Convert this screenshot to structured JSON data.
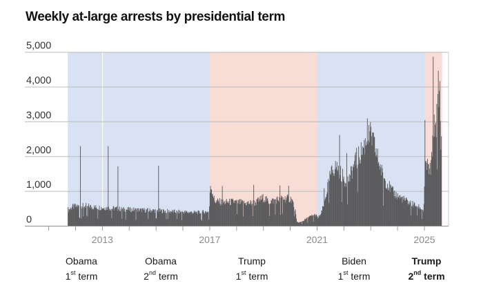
{
  "chart_data": {
    "type": "bar",
    "title": "Weekly at-large arrests by presidential term",
    "ylabel": "",
    "xlabel": "",
    "grid": "horizontal",
    "legend": "none",
    "y_axis": {
      "min": 0,
      "max": 5000,
      "ticks": [
        {
          "value": 0,
          "label": "0"
        },
        {
          "value": 1000,
          "label": "1,000"
        },
        {
          "value": 2000,
          "label": "2,000"
        },
        {
          "value": 3000,
          "label": "3,000"
        },
        {
          "value": 4000,
          "label": "4,000"
        },
        {
          "value": 5000,
          "label": "5,000"
        }
      ]
    },
    "x_axis": {
      "min_year": 2010.11,
      "max_year": 2025.9,
      "tick_years": [
        2011,
        2012,
        2013,
        2014,
        2015,
        2016,
        2017,
        2018,
        2019,
        2020,
        2021,
        2022,
        2023,
        2024,
        2025
      ],
      "year_labels": [
        {
          "year": 2013,
          "text": "2013"
        },
        {
          "year": 2017,
          "text": "2017"
        },
        {
          "year": 2021,
          "text": "2021"
        },
        {
          "year": 2025,
          "text": "2025"
        }
      ]
    },
    "bands": [
      {
        "term": "Obama 1st term",
        "party": "democrat",
        "start": 2011.71,
        "end": 2012.99,
        "color": "#d8e2f2"
      },
      {
        "term": "Obama 2nd term",
        "party": "democrat",
        "start": 2013.02,
        "end": 2017.0,
        "color": "#d8e2f2"
      },
      {
        "term": "Trump 1st term",
        "party": "republican",
        "start": 2017.0,
        "end": 2021.0,
        "color": "#f8dcd6"
      },
      {
        "term": "Biden 1st term",
        "party": "democrat",
        "start": 2021.0,
        "end": 2025.0,
        "color": "#d8e2f2"
      },
      {
        "term": "Trump 2nd term",
        "party": "republican",
        "start": 2025.0,
        "end": 2025.66,
        "color": "#f8dcd6"
      }
    ],
    "terms": [
      {
        "name": "Obama",
        "ordinal": "1",
        "suffix": "st",
        "word": "term",
        "x": 118,
        "bold": false
      },
      {
        "name": "Obama",
        "ordinal": "2",
        "suffix": "nd",
        "word": "term",
        "x": 233,
        "bold": false
      },
      {
        "name": "Trump",
        "ordinal": "1",
        "suffix": "st",
        "word": "term",
        "x": 365,
        "bold": false
      },
      {
        "name": "Biden",
        "ordinal": "1",
        "suffix": "st",
        "word": "term",
        "x": 513,
        "bold": false
      },
      {
        "name": "Trump",
        "ordinal": "2",
        "suffix": "nd",
        "word": "term",
        "x": 618,
        "bold": true
      }
    ],
    "series": {
      "name": "Weekly at-large arrests",
      "sampling": "weekly",
      "start_year": 2011.72,
      "end_year": 2025.648,
      "jitter": 0.16,
      "dip_chance": 0.055,
      "dip_factor": 0.45,
      "min_value": 35,
      "envelope_anchors": [
        [
          2011.75,
          480
        ],
        [
          2011.9,
          560
        ],
        [
          2012.1,
          570
        ],
        [
          2012.4,
          580
        ],
        [
          2012.7,
          540
        ],
        [
          2013.0,
          530
        ],
        [
          2013.4,
          510
        ],
        [
          2013.8,
          480
        ],
        [
          2014.2,
          470
        ],
        [
          2014.6,
          455
        ],
        [
          2015.0,
          450
        ],
        [
          2015.4,
          430
        ],
        [
          2015.8,
          410
        ],
        [
          2016.2,
          400
        ],
        [
          2016.6,
          390
        ],
        [
          2016.98,
          420
        ],
        [
          2017.03,
          1200
        ],
        [
          2017.1,
          1000
        ],
        [
          2017.18,
          720
        ],
        [
          2017.5,
          680
        ],
        [
          2017.9,
          700
        ],
        [
          2018.3,
          660
        ],
        [
          2018.7,
          670
        ],
        [
          2019.0,
          820
        ],
        [
          2019.2,
          700
        ],
        [
          2019.5,
          760
        ],
        [
          2019.8,
          800
        ],
        [
          2020.05,
          780
        ],
        [
          2020.18,
          500
        ],
        [
          2020.24,
          120
        ],
        [
          2020.35,
          100
        ],
        [
          2020.5,
          160
        ],
        [
          2020.7,
          260
        ],
        [
          2020.95,
          330
        ],
        [
          2021.03,
          230
        ],
        [
          2021.15,
          350
        ],
        [
          2021.3,
          750
        ],
        [
          2021.45,
          1350
        ],
        [
          2021.6,
          1650
        ],
        [
          2021.75,
          1700
        ],
        [
          2021.9,
          1500
        ],
        [
          2022.05,
          1300
        ],
        [
          2022.2,
          1350
        ],
        [
          2022.4,
          1800
        ],
        [
          2022.6,
          2050
        ],
        [
          2022.75,
          2300
        ],
        [
          2022.9,
          2550
        ],
        [
          2023.02,
          2600
        ],
        [
          2023.15,
          2250
        ],
        [
          2023.3,
          1850
        ],
        [
          2023.45,
          1450
        ],
        [
          2023.6,
          1250
        ],
        [
          2023.8,
          1000
        ],
        [
          2024.0,
          870
        ],
        [
          2024.2,
          780
        ],
        [
          2024.4,
          690
        ],
        [
          2024.6,
          620
        ],
        [
          2024.8,
          560
        ],
        [
          2024.97,
          440
        ],
        [
          2025.02,
          1400
        ],
        [
          2025.06,
          1850
        ],
        [
          2025.12,
          1700
        ],
        [
          2025.2,
          1550
        ],
        [
          2025.28,
          1900
        ],
        [
          2025.33,
          2700
        ],
        [
          2025.38,
          2850
        ],
        [
          2025.44,
          3000
        ],
        [
          2025.5,
          3450
        ],
        [
          2025.56,
          3550
        ],
        [
          2025.61,
          2600
        ],
        [
          2025.645,
          2450
        ]
      ],
      "spike_weeks": [
        {
          "x": 2012.18,
          "value": 2300
        },
        {
          "x": 2013.21,
          "value": 2300
        },
        {
          "x": 2013.57,
          "value": 1720
        },
        {
          "x": 2015.09,
          "value": 1740
        },
        {
          "x": 2017.46,
          "value": 1150
        },
        {
          "x": 2018.63,
          "value": 1190
        },
        {
          "x": 2019.62,
          "value": 1170
        },
        {
          "x": 2019.95,
          "value": 1160
        },
        {
          "x": 2021.26,
          "value": 1090
        },
        {
          "x": 2021.83,
          "value": 2620
        },
        {
          "x": 2022.1,
          "value": 2100
        },
        {
          "x": 2022.47,
          "value": 2250
        },
        {
          "x": 2022.88,
          "value": 3100
        },
        {
          "x": 2025.02,
          "value": 3050
        },
        {
          "x": 2025.325,
          "value": 4870
        },
        {
          "x": 2025.52,
          "value": 4470
        },
        {
          "x": 2025.575,
          "value": 4170
        }
      ]
    },
    "colors": {
      "democrat_band": "#d8e2f2",
      "republican_band": "#f8dcd6",
      "bars": "#5b5b5d",
      "gridline": "#bcbcbc",
      "axis_line": "#8f8f8f",
      "tick": "#9a9a9a",
      "year_label": "#8b8b8b",
      "y_label": "#333333",
      "right_border": "#c9c9c9",
      "title": "#111111"
    }
  }
}
